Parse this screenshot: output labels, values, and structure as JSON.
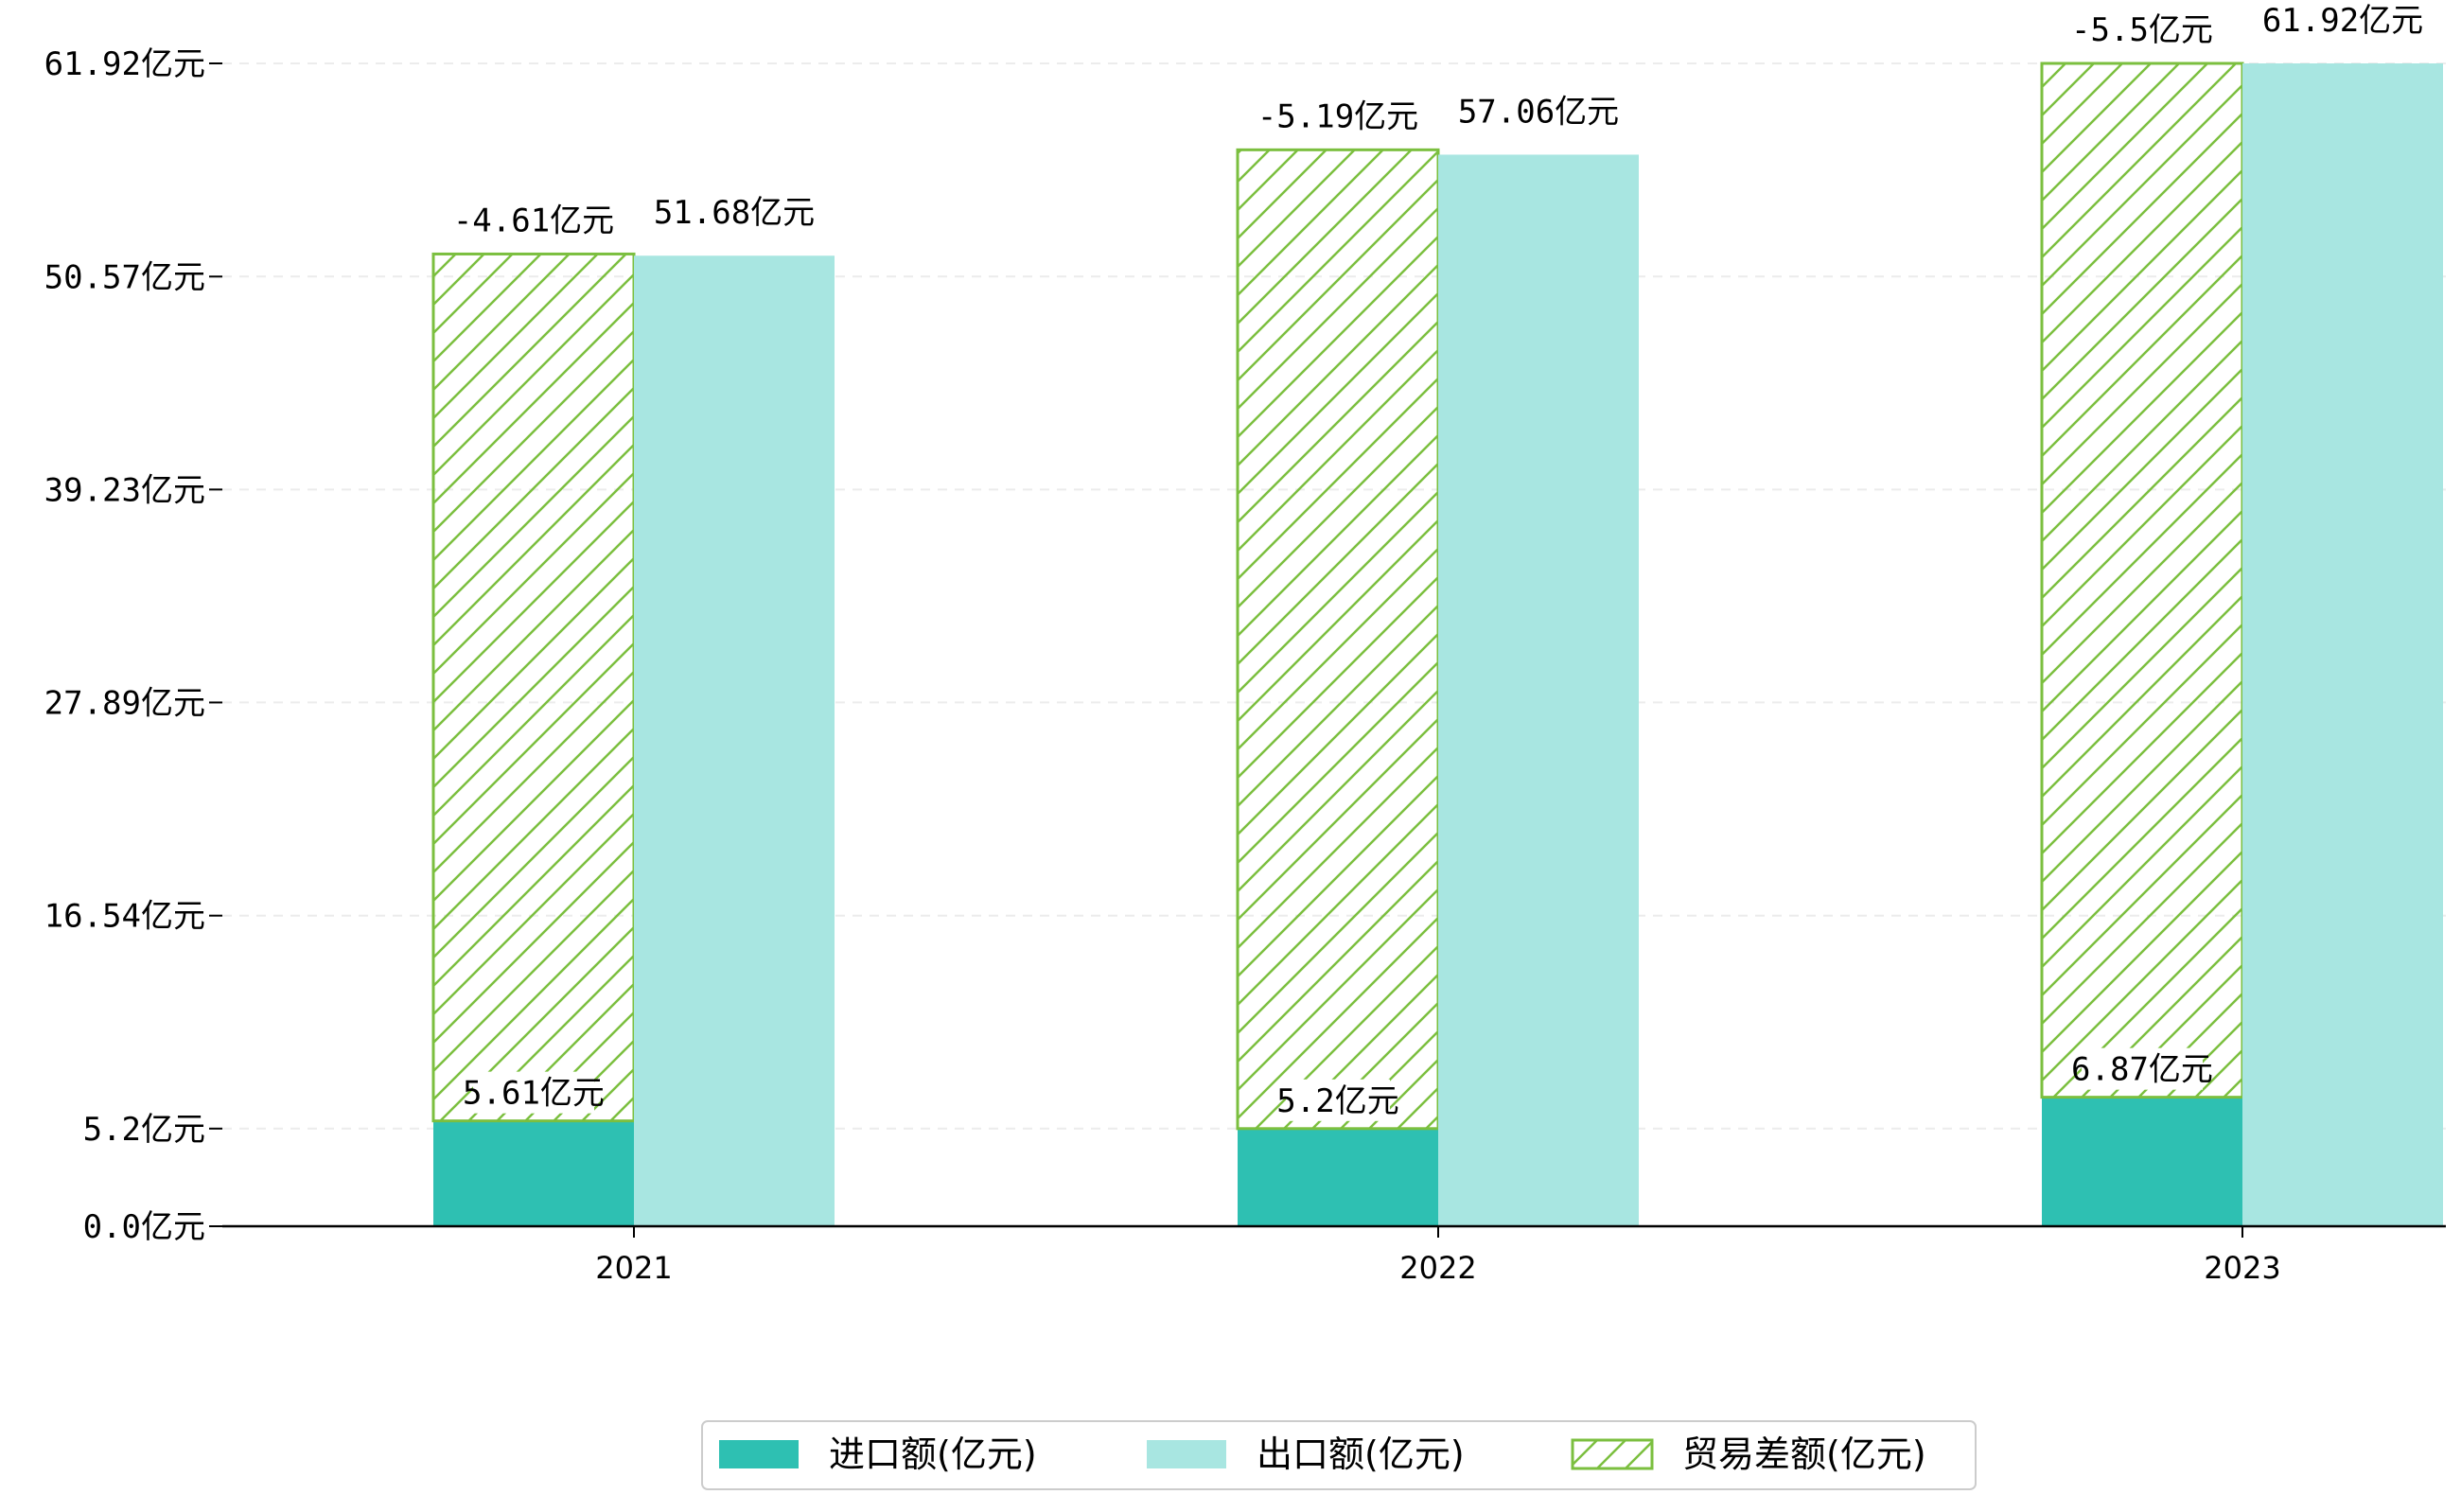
{
  "chart_data": {
    "type": "bar",
    "categories": [
      "2021",
      "2022",
      "2023"
    ],
    "unit": "亿元",
    "series": [
      {
        "name": "进口额(亿元)",
        "values": [
          5.61,
          5.2,
          6.87
        ],
        "labels": [
          "5.61亿元",
          "5.2亿元",
          "6.87亿元"
        ],
        "color": "#2ec0b2"
      },
      {
        "name": "出口额(亿元)",
        "values": [
          51.68,
          57.06,
          61.92
        ],
        "labels": [
          "51.68亿元",
          "57.06亿元",
          "61.92亿元"
        ],
        "color": "#a8e6e1"
      },
      {
        "name": "贸易差额(亿元)",
        "values": [
          -4.61,
          -5.19,
          -5.5
        ],
        "labels": [
          "-4.61亿元",
          "-5.19亿元",
          "-5.5亿元"
        ],
        "color": "#7bbf3f",
        "style": "hatched"
      }
    ],
    "yticks": [
      0.0,
      5.2,
      16.54,
      27.89,
      39.23,
      50.57,
      61.92
    ],
    "ytick_labels": [
      "0.0亿元",
      "5.2亿元",
      "16.54亿元",
      "27.89亿元",
      "39.23亿元",
      "50.57亿元",
      "61.92亿元"
    ],
    "ylim": [
      0,
      61.92
    ],
    "grid": "horizontal dashed",
    "legend": "bottom-center"
  }
}
